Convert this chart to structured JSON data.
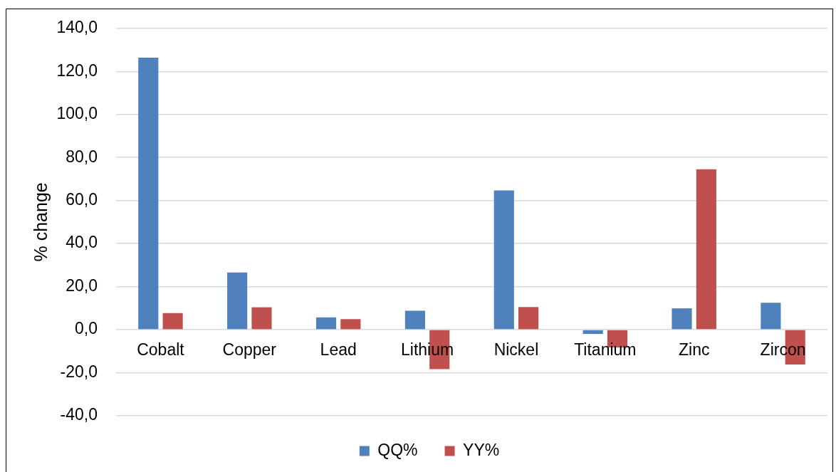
{
  "chart_data": {
    "type": "bar",
    "ylabel": "% change",
    "categories": [
      "Cobalt",
      "Copper",
      "Lead",
      "Lithium",
      "Nickel",
      "Titanium",
      "Zinc",
      "Zircon"
    ],
    "series": [
      {
        "name": "QQ%",
        "color": "#4f81bd",
        "values": [
          126.4,
          26.6,
          5.7,
          8.8,
          64.7,
          -2.0,
          9.9,
          12.5
        ]
      },
      {
        "name": "YY%",
        "color": "#c0504d",
        "values": [
          7.7,
          10.4,
          4.9,
          -18.3,
          10.5,
          -8.3,
          74.5,
          -16.2
        ]
      }
    ],
    "ylim": [
      -40,
      140
    ],
    "yticks": [
      {
        "value": -40,
        "label": "-40,0"
      },
      {
        "value": -20,
        "label": "-20,0"
      },
      {
        "value": 0,
        "label": "0,0"
      },
      {
        "value": 20,
        "label": "20,0"
      },
      {
        "value": 40,
        "label": "40,0"
      },
      {
        "value": 60,
        "label": "60,0"
      },
      {
        "value": 80,
        "label": "80,0"
      },
      {
        "value": 100,
        "label": "100,0"
      },
      {
        "value": 120,
        "label": "120,0"
      },
      {
        "value": 140,
        "label": "140,0"
      }
    ],
    "grid": "y",
    "legend": "bottom"
  }
}
